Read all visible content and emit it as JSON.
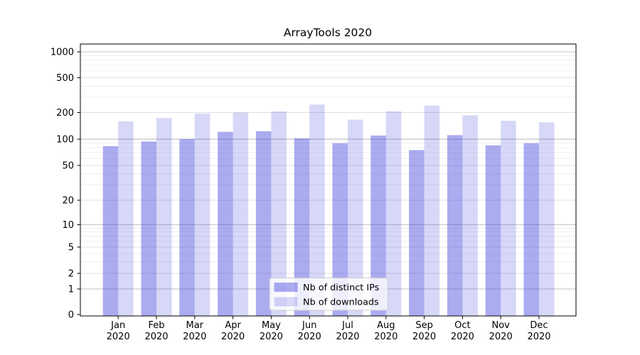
{
  "chart_data": {
    "type": "bar",
    "title": "ArrayTools 2020",
    "categories": [
      "Jan 2020",
      "Feb 2020",
      "Mar 2020",
      "Apr 2020",
      "May 2020",
      "Jun 2020",
      "Jul 2020",
      "Aug 2020",
      "Sep 2020",
      "Oct 2020",
      "Nov 2020",
      "Dec 2020"
    ],
    "series": [
      {
        "name": "Nb of distinct IPs",
        "color": "#4444dd",
        "fill_opacity": 0.45,
        "values": [
          83,
          94,
          100,
          121,
          123,
          102,
          90,
          110,
          75,
          111,
          85,
          90
        ]
      },
      {
        "name": "Nb of downloads",
        "color": "#4444dd",
        "fill_opacity": 0.21,
        "values": [
          159,
          173,
          195,
          200,
          206,
          247,
          166,
          207,
          240,
          186,
          161,
          155
        ]
      }
    ],
    "xlabel": "",
    "ylabel": "",
    "yscale": "symlog",
    "yticks": [
      0,
      1,
      2,
      5,
      10,
      20,
      50,
      100,
      200,
      500,
      1000
    ],
    "minor_yticks": [
      3,
      4,
      6,
      7,
      8,
      9,
      30,
      40,
      60,
      70,
      80,
      90,
      300,
      400,
      600,
      700,
      800,
      900
    ],
    "ylim": [
      0,
      1400
    ],
    "grid": true,
    "legend_position": "lower center"
  },
  "colors": {
    "background": "#ffffff",
    "axis": "#000000",
    "text": "#000000",
    "grid_emphasis": "#b3b3b3",
    "grid_power10": "#c2c2c2",
    "grid_major": "#e0e0e0",
    "grid_minor": "#ececec",
    "legend_border": "#cccccc",
    "legend_background": "#ffffff"
  }
}
